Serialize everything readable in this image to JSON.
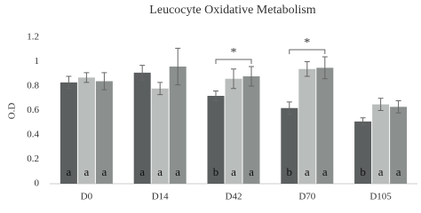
{
  "chart_data": {
    "type": "bar",
    "title": "Leucocyte Oxidative Metabolism",
    "y_label": "O.D",
    "categories": [
      "D0",
      "D14",
      "D42",
      "D70",
      "D105"
    ],
    "series": [
      {
        "color": "#5b5f5f",
        "values": [
          0.83,
          0.91,
          0.72,
          0.62,
          0.51
        ],
        "errors": [
          0.05,
          0.06,
          0.04,
          0.05,
          0.03
        ],
        "letters": [
          "a",
          "a",
          "b",
          "b",
          "b"
        ]
      },
      {
        "color": "#b9bdbc",
        "values": [
          0.87,
          0.78,
          0.86,
          0.94,
          0.65
        ],
        "errors": [
          0.04,
          0.05,
          0.08,
          0.06,
          0.05
        ],
        "letters": [
          "a",
          "a",
          "a",
          "a",
          "a"
        ]
      },
      {
        "color": "#8b908f",
        "values": [
          0.84,
          0.96,
          0.88,
          0.95,
          0.63
        ],
        "errors": [
          0.07,
          0.15,
          0.08,
          0.09,
          0.05
        ],
        "letters": [
          "a",
          "a",
          "a",
          "a",
          "a"
        ]
      }
    ],
    "annotations": [
      {
        "text": "*",
        "category": "D42"
      },
      {
        "text": "*",
        "category": "D70"
      }
    ],
    "ylim": [
      0,
      1.2
    ],
    "yticks": [
      0,
      0.2,
      0.4,
      0.6,
      0.8,
      1,
      1.2
    ],
    "grid": false
  }
}
